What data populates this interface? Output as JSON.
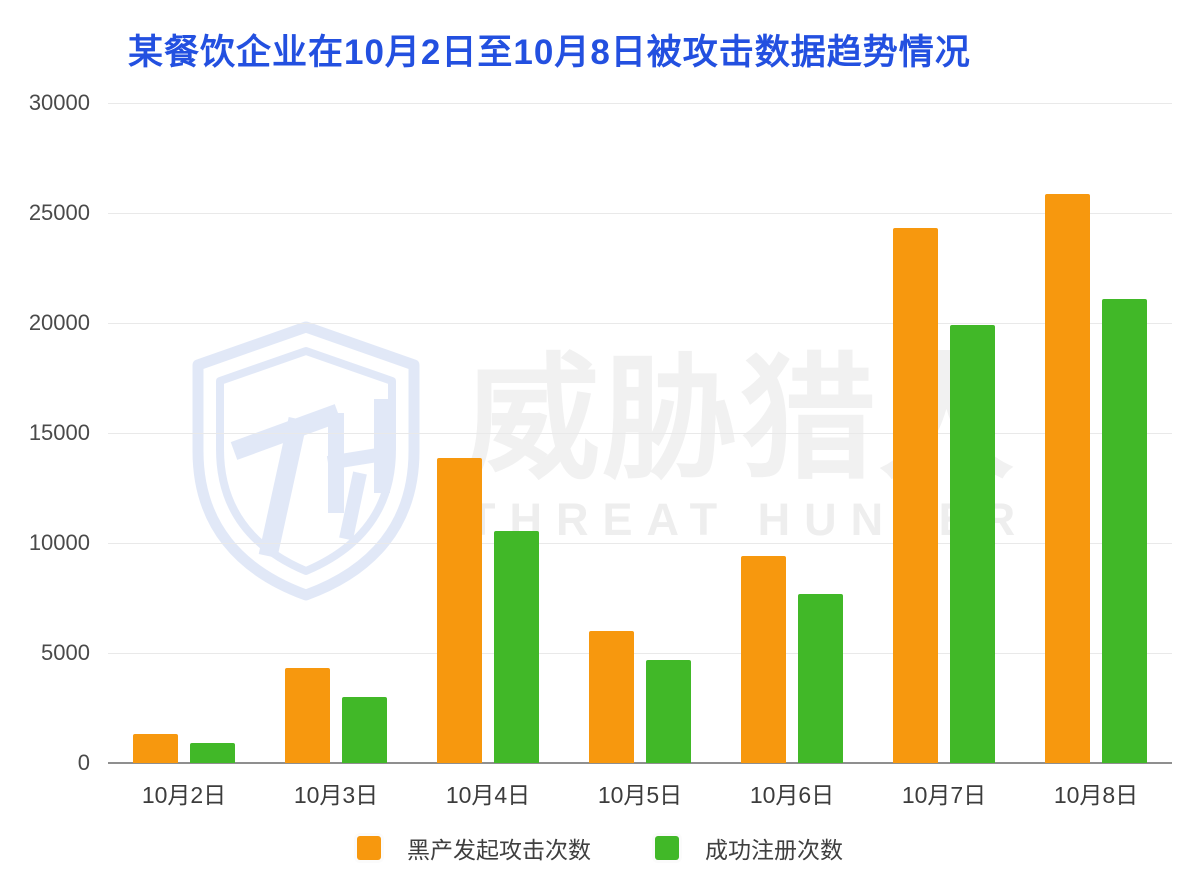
{
  "title": "某餐饮企业在10月2日至10月8日被攻击数据趋势情况",
  "title_color": "#2350e0",
  "watermark": {
    "logo": "threat-hunter-shield",
    "cn": "威胁猎人",
    "en": "THREAT HUNTER",
    "logo_color": "#dbe4f7",
    "text_color": "#f1f1f1"
  },
  "chart_data": {
    "type": "bar",
    "title": "某餐饮企业在10月2日至10月8日被攻击数据趋势情况",
    "xlabel": "",
    "ylabel": "",
    "categories": [
      "10月2日",
      "10月3日",
      "10月4日",
      "10月5日",
      "10月6日",
      "10月7日",
      "10月8日"
    ],
    "series": [
      {
        "name": "黑产发起攻击次数",
        "color": "#f7980e",
        "values": [
          1300,
          4300,
          13850,
          6000,
          9400,
          24300,
          25850
        ]
      },
      {
        "name": "成功注册次数",
        "color": "#41b828",
        "values": [
          900,
          3000,
          10550,
          4700,
          7700,
          19900,
          21100
        ]
      }
    ],
    "ylim": [
      0,
      30000
    ],
    "yticks": [
      0,
      5000,
      10000,
      15000,
      20000,
      25000,
      30000
    ],
    "grid": true,
    "legend_position": "bottom"
  }
}
